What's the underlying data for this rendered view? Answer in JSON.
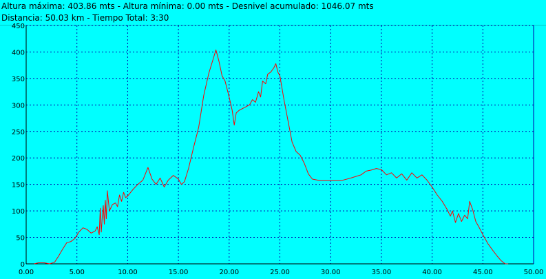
{
  "header": {
    "line1": "Altura máxima: 403.86 mts - Altura mínima: 0.00 mts - Desnivel acumulado: 1046.07 mts",
    "line2": "Distancia: 50.03 km - Tiempo Total: 3:30"
  },
  "colors": {
    "background": "#00ffff",
    "grid": "#0000aa",
    "axis": "#000000",
    "series": "#ff0000"
  },
  "chart_data": {
    "type": "line",
    "title": "",
    "xlabel": "",
    "ylabel": "",
    "xlim": [
      0,
      50
    ],
    "ylim": [
      0,
      450
    ],
    "grid": true,
    "x_ticks": [
      "0.00",
      "5.00",
      "10.00",
      "15.00",
      "20.00",
      "25.00",
      "30.00",
      "35.00",
      "40.00",
      "45.00",
      "50.00"
    ],
    "y_ticks": [
      "0",
      "50",
      "100",
      "150",
      "200",
      "250",
      "300",
      "350",
      "400",
      "450"
    ],
    "series": [
      {
        "name": "",
        "points": [
          [
            0.8,
            0
          ],
          [
            1.2,
            2
          ],
          [
            1.8,
            2
          ],
          [
            2.3,
            0
          ],
          [
            2.8,
            3
          ],
          [
            3.2,
            15
          ],
          [
            3.6,
            28
          ],
          [
            4.0,
            40
          ],
          [
            4.4,
            42
          ],
          [
            4.8,
            48
          ],
          [
            5.2,
            60
          ],
          [
            5.6,
            68
          ],
          [
            6.0,
            65
          ],
          [
            6.4,
            58
          ],
          [
            6.8,
            62
          ],
          [
            7.0,
            70
          ],
          [
            7.2,
            55
          ],
          [
            7.3,
            105
          ],
          [
            7.4,
            60
          ],
          [
            7.5,
            90
          ],
          [
            7.6,
            110
          ],
          [
            7.7,
            75
          ],
          [
            7.8,
            120
          ],
          [
            7.9,
            85
          ],
          [
            8.0,
            138
          ],
          [
            8.2,
            100
          ],
          [
            8.5,
            112
          ],
          [
            8.8,
            115
          ],
          [
            9.0,
            108
          ],
          [
            9.2,
            130
          ],
          [
            9.4,
            118
          ],
          [
            9.6,
            135
          ],
          [
            9.8,
            125
          ],
          [
            10.0,
            128
          ],
          [
            10.5,
            140
          ],
          [
            11.0,
            150
          ],
          [
            11.5,
            158
          ],
          [
            12.0,
            182
          ],
          [
            12.4,
            160
          ],
          [
            12.8,
            150
          ],
          [
            13.2,
            162
          ],
          [
            13.6,
            145
          ],
          [
            14.0,
            158
          ],
          [
            14.5,
            167
          ],
          [
            15.0,
            160
          ],
          [
            15.3,
            150
          ],
          [
            15.6,
            155
          ],
          [
            16.0,
            180
          ],
          [
            16.5,
            220
          ],
          [
            17.0,
            258
          ],
          [
            17.5,
            318
          ],
          [
            18.0,
            360
          ],
          [
            18.4,
            385
          ],
          [
            18.7,
            404
          ],
          [
            19.0,
            382
          ],
          [
            19.3,
            355
          ],
          [
            19.6,
            345
          ],
          [
            20.0,
            315
          ],
          [
            20.3,
            290
          ],
          [
            20.5,
            262
          ],
          [
            20.7,
            285
          ],
          [
            21.0,
            290
          ],
          [
            21.5,
            295
          ],
          [
            22.0,
            300
          ],
          [
            22.3,
            310
          ],
          [
            22.6,
            305
          ],
          [
            22.9,
            325
          ],
          [
            23.1,
            315
          ],
          [
            23.3,
            345
          ],
          [
            23.6,
            340
          ],
          [
            23.8,
            358
          ],
          [
            24.1,
            362
          ],
          [
            24.4,
            370
          ],
          [
            24.6,
            378
          ],
          [
            24.8,
            362
          ],
          [
            25.0,
            355
          ],
          [
            25.4,
            310
          ],
          [
            25.8,
            270
          ],
          [
            26.2,
            230
          ],
          [
            26.6,
            212
          ],
          [
            27.0,
            205
          ],
          [
            27.4,
            190
          ],
          [
            27.8,
            170
          ],
          [
            28.2,
            160
          ],
          [
            29.0,
            157
          ],
          [
            30.0,
            157
          ],
          [
            31.0,
            157
          ],
          [
            32.0,
            162
          ],
          [
            33.0,
            168
          ],
          [
            33.5,
            175
          ],
          [
            34.0,
            177
          ],
          [
            34.5,
            180
          ],
          [
            35.0,
            178
          ],
          [
            35.5,
            168
          ],
          [
            36.0,
            172
          ],
          [
            36.5,
            162
          ],
          [
            37.0,
            170
          ],
          [
            37.5,
            158
          ],
          [
            38.0,
            172
          ],
          [
            38.5,
            162
          ],
          [
            39.0,
            168
          ],
          [
            39.5,
            158
          ],
          [
            40.0,
            145
          ],
          [
            40.5,
            130
          ],
          [
            41.0,
            118
          ],
          [
            41.5,
            102
          ],
          [
            41.8,
            90
          ],
          [
            42.0,
            100
          ],
          [
            42.3,
            78
          ],
          [
            42.6,
            95
          ],
          [
            42.9,
            80
          ],
          [
            43.2,
            92
          ],
          [
            43.5,
            85
          ],
          [
            43.7,
            118
          ],
          [
            44.0,
            102
          ],
          [
            44.3,
            80
          ],
          [
            44.6,
            70
          ],
          [
            45.0,
            55
          ],
          [
            45.5,
            38
          ],
          [
            46.0,
            25
          ],
          [
            46.4,
            15
          ],
          [
            46.8,
            6
          ],
          [
            47.2,
            0
          ],
          [
            47.5,
            0
          ]
        ]
      }
    ]
  }
}
